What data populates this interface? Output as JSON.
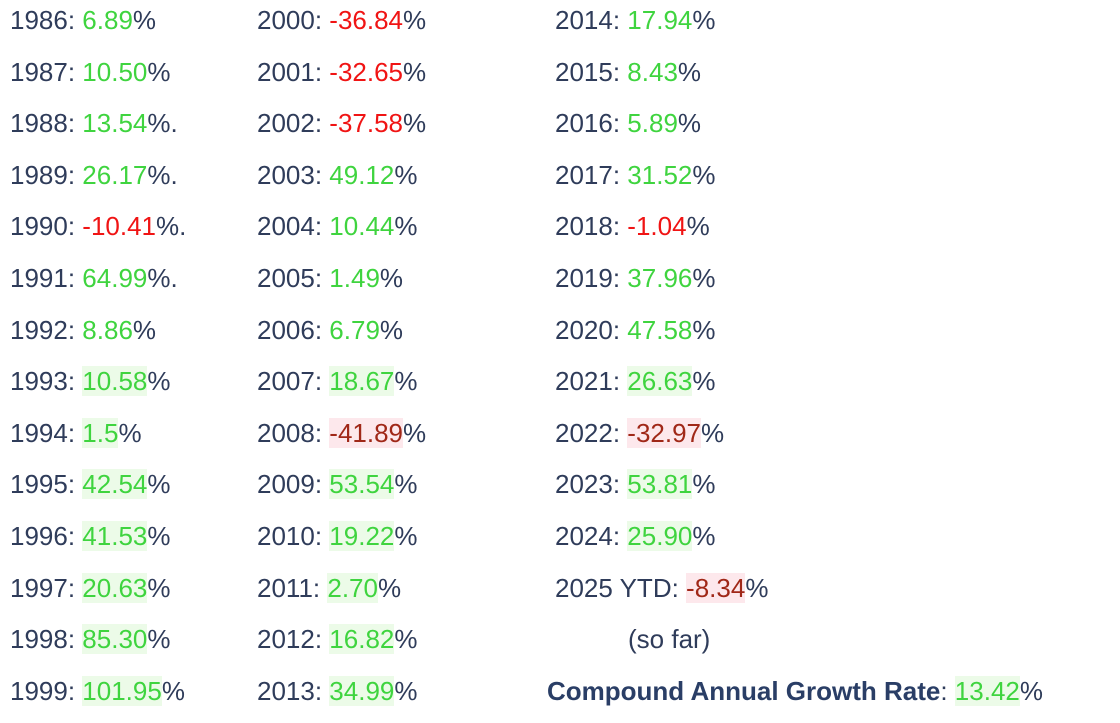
{
  "columns": [
    {
      "rows": [
        {
          "year": "1986",
          "value": "6.89",
          "suffix": "%",
          "tone": "pos",
          "hl": ""
        },
        {
          "year": "1987",
          "value": "10.50",
          "suffix": "%",
          "tone": "pos",
          "hl": ""
        },
        {
          "year": "1988",
          "value": "13.54",
          "suffix": "%.",
          "tone": "pos",
          "hl": ""
        },
        {
          "year": "1989",
          "value": "26.17",
          "suffix": "%.",
          "tone": "pos",
          "hl": ""
        },
        {
          "year": "1990",
          "value": "-10.41",
          "suffix": "%.",
          "tone": "neg",
          "hl": ""
        },
        {
          "year": "1991",
          "value": "64.99",
          "suffix": "%.",
          "tone": "pos",
          "hl": ""
        },
        {
          "year": "1992",
          "value": "8.86",
          "suffix": "%",
          "tone": "pos",
          "hl": ""
        },
        {
          "year": "1993",
          "value": "10.58",
          "suffix": "%",
          "tone": "pos",
          "hl": "green"
        },
        {
          "year": "1994",
          "value": "1.5",
          "suffix": "%",
          "tone": "pos",
          "hl": "green"
        },
        {
          "year": "1995",
          "value": "42.54",
          "suffix": "%",
          "tone": "pos",
          "hl": "green"
        },
        {
          "year": "1996",
          "value": "41.53",
          "suffix": "%",
          "tone": "pos",
          "hl": "green"
        },
        {
          "year": "1997",
          "value": "20.63",
          "suffix": "%",
          "tone": "pos",
          "hl": "green"
        },
        {
          "year": "1998",
          "value": "85.30",
          "suffix": "%",
          "tone": "pos",
          "hl": "green"
        },
        {
          "year": "1999",
          "value": "101.95",
          "suffix": "%",
          "tone": "pos",
          "hl": "green"
        }
      ]
    },
    {
      "rows": [
        {
          "year": "2000",
          "value": "-36.84",
          "suffix": "%",
          "tone": "neg",
          "hl": ""
        },
        {
          "year": "2001",
          "value": "-32.65",
          "suffix": "%",
          "tone": "neg",
          "hl": ""
        },
        {
          "year": "2002",
          "value": "-37.58",
          "suffix": "%",
          "tone": "neg",
          "hl": ""
        },
        {
          "year": "2003",
          "value": "49.12",
          "suffix": "%",
          "tone": "pos",
          "hl": ""
        },
        {
          "year": "2004",
          "value": "10.44",
          "suffix": "%",
          "tone": "pos",
          "hl": ""
        },
        {
          "year": "2005",
          "value": "1.49",
          "suffix": "%",
          "tone": "pos",
          "hl": ""
        },
        {
          "year": "2006",
          "value": "6.79",
          "suffix": "%",
          "tone": "pos",
          "hl": ""
        },
        {
          "year": "2007",
          "value": "18.67",
          "suffix": "%",
          "tone": "pos",
          "hl": "green"
        },
        {
          "year": "2008",
          "value": "-41.89",
          "suffix": "%",
          "tone": "neg-dark",
          "hl": "red"
        },
        {
          "year": "2009",
          "value": "53.54",
          "suffix": "%",
          "tone": "pos",
          "hl": "green"
        },
        {
          "year": "2010",
          "value": "19.22",
          "suffix": "%",
          "tone": "pos",
          "hl": "green"
        },
        {
          "year": "2011",
          "value": "2.70",
          "suffix": "%",
          "tone": "pos",
          "hl": "green"
        },
        {
          "year": "2012",
          "value": "16.82",
          "suffix": "%",
          "tone": "pos",
          "hl": "green"
        },
        {
          "year": "2013",
          "value": "34.99",
          "suffix": "%",
          "tone": "pos",
          "hl": "green"
        }
      ]
    },
    {
      "rows": [
        {
          "year": "2014",
          "value": "17.94",
          "suffix": "%",
          "tone": "pos",
          "hl": ""
        },
        {
          "year": "2015",
          "value": "8.43",
          "suffix": "%",
          "tone": "pos",
          "hl": ""
        },
        {
          "year": "2016",
          "value": "5.89",
          "suffix": "%",
          "tone": "pos",
          "hl": ""
        },
        {
          "year": "2017",
          "value": "31.52",
          "suffix": "%",
          "tone": "pos",
          "hl": ""
        },
        {
          "year": "2018",
          "value": "-1.04",
          "suffix": "%",
          "tone": "neg",
          "hl": ""
        },
        {
          "year": "2019",
          "value": "37.96",
          "suffix": "%",
          "tone": "pos",
          "hl": ""
        },
        {
          "year": "2020",
          "value": "47.58",
          "suffix": "%",
          "tone": "pos",
          "hl": ""
        },
        {
          "year": "2021",
          "value": "26.63",
          "suffix": "%",
          "tone": "pos",
          "hl": "green"
        },
        {
          "year": "2022",
          "value": "-32.97",
          "suffix": "%",
          "tone": "neg-dark",
          "hl": "red"
        },
        {
          "year": "2023",
          "value": "53.81",
          "suffix": "%",
          "tone": "pos",
          "hl": "green"
        },
        {
          "year": "2024",
          "value": "25.90",
          "suffix": "%",
          "tone": "pos",
          "hl": "green"
        },
        {
          "year": "2025 YTD",
          "value": "-8.34",
          "suffix": "%",
          "tone": "neg-dark",
          "hl": "red"
        }
      ],
      "note": "(so far)"
    }
  ],
  "cagr": {
    "label": "Compound Annual Growth Rate",
    "separator": ": ",
    "value": "13.42",
    "suffix": "%"
  },
  "colors": {
    "text": "#2f3c5a",
    "positive": "#3fd43f",
    "negative": "#f01414",
    "negative_dark": "#a02818",
    "highlight_green": "#ecfbe8",
    "highlight_red": "#fde8ec"
  }
}
